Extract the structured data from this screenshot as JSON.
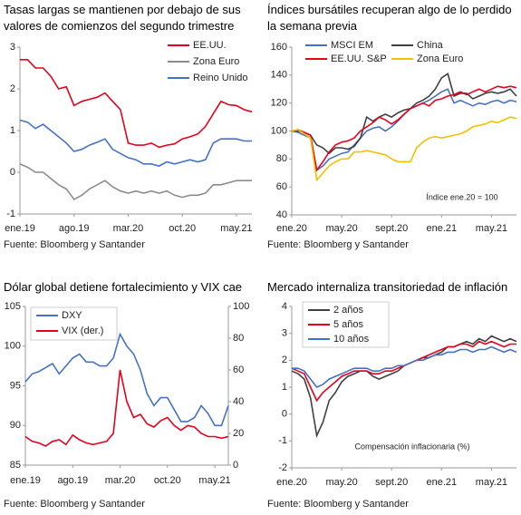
{
  "chart_data": [
    {
      "type": "line",
      "title": "Tasas largas se mantienen por debajo de sus valores de comienzos del segundo trimestre",
      "source": "Fuente: Bloomberg y Santander",
      "categories": [
        "ene.19",
        null,
        null,
        null,
        null,
        null,
        null,
        "ago.19",
        null,
        null,
        null,
        null,
        null,
        null,
        "mar.20",
        null,
        null,
        null,
        null,
        null,
        null,
        "oct.20",
        null,
        null,
        null,
        null,
        null,
        null,
        "may.21",
        null,
        null
      ],
      "series": [
        {
          "name": "EE.UU.",
          "color": "#e8001c",
          "values": [
            2.7,
            2.7,
            2.5,
            2.5,
            2.3,
            2.0,
            2.05,
            1.6,
            1.7,
            1.75,
            1.8,
            1.9,
            1.7,
            1.5,
            0.7,
            0.65,
            0.65,
            0.7,
            0.6,
            0.65,
            0.68,
            0.8,
            0.85,
            0.92,
            1.1,
            1.4,
            1.7,
            1.62,
            1.6,
            1.5,
            1.45
          ]
        },
        {
          "name": "Zona Euro",
          "color": "#8c8c8c",
          "values": [
            0.2,
            0.12,
            0.0,
            0.0,
            -0.15,
            -0.3,
            -0.4,
            -0.65,
            -0.55,
            -0.4,
            -0.3,
            -0.2,
            -0.35,
            -0.45,
            -0.5,
            -0.45,
            -0.5,
            -0.45,
            -0.5,
            -0.45,
            -0.55,
            -0.6,
            -0.55,
            -0.55,
            -0.5,
            -0.3,
            -0.3,
            -0.25,
            -0.2,
            -0.2,
            -0.2
          ]
        },
        {
          "name": "Reino Unido",
          "color": "#4472c4",
          "values": [
            1.25,
            1.2,
            1.05,
            1.15,
            1.0,
            0.85,
            0.7,
            0.5,
            0.55,
            0.65,
            0.72,
            0.8,
            0.55,
            0.45,
            0.35,
            0.3,
            0.2,
            0.2,
            0.15,
            0.25,
            0.2,
            0.25,
            0.3,
            0.25,
            0.3,
            0.7,
            0.8,
            0.8,
            0.8,
            0.75,
            0.75
          ]
        }
      ],
      "ylim": [
        -1,
        3
      ],
      "yticks": [
        -1,
        0,
        1,
        2,
        3
      ]
    },
    {
      "type": "line",
      "title": "Índices bursátiles recuperan algo de lo perdido la semana previa",
      "source": "Fuente: Bloomberg y Santander",
      "annotation": "Índice ene.20 = 100",
      "categories": [
        "ene.20",
        null,
        null,
        null,
        null,
        null,
        null,
        null,
        "may.20",
        null,
        null,
        null,
        null,
        null,
        null,
        null,
        "sept.20",
        null,
        null,
        null,
        null,
        null,
        null,
        null,
        "ene.21",
        null,
        null,
        null,
        null,
        null,
        null,
        null,
        "may.21",
        null,
        null,
        null,
        null
      ],
      "series": [
        {
          "name": "MSCI EM",
          "color": "#4472c4",
          "values": [
            100,
            99,
            97,
            95,
            72,
            75,
            80,
            82,
            84,
            85,
            90,
            95,
            100,
            102,
            103,
            100,
            103,
            107,
            112,
            116,
            118,
            120,
            122,
            125,
            128,
            130,
            120,
            122,
            120,
            118,
            120,
            119,
            121,
            122,
            120,
            122,
            121
          ]
        },
        {
          "name": "China",
          "color": "#404040",
          "values": [
            100,
            100,
            99,
            97,
            90,
            88,
            84,
            88,
            88,
            87,
            89,
            95,
            110,
            107,
            110,
            112,
            110,
            113,
            115,
            116,
            120,
            122,
            125,
            130,
            138,
            141,
            125,
            127,
            127,
            123,
            125,
            127,
            128,
            127,
            128,
            130,
            125
          ]
        },
        {
          "name": "EE.UU. S&P",
          "color": "#e8001c",
          "values": [
            100,
            101,
            99,
            97,
            72,
            78,
            85,
            90,
            92,
            93,
            95,
            100,
            103,
            106,
            110,
            108,
            105,
            108,
            112,
            116,
            118,
            120,
            118,
            122,
            123,
            125,
            126,
            128,
            126,
            128,
            130,
            128,
            130,
            132,
            131,
            132,
            131
          ]
        },
        {
          "name": "Zona Euro",
          "color": "#f5c000",
          "values": [
            100,
            101,
            98,
            95,
            65,
            70,
            75,
            78,
            80,
            80,
            85,
            85,
            86,
            85,
            84,
            83,
            80,
            78,
            78,
            78,
            88,
            92,
            95,
            96,
            95,
            96,
            97,
            98,
            100,
            103,
            104,
            105,
            107,
            106,
            108,
            110,
            109
          ]
        }
      ],
      "ylim": [
        40,
        160
      ],
      "yticks": [
        40,
        60,
        80,
        100,
        120,
        140,
        160
      ]
    },
    {
      "type": "line",
      "title": "Dólar global detiene fortalecimiento y VIX cae",
      "source": "Fuente: Bloomberg y Santander",
      "categories": [
        "ene.19",
        null,
        null,
        null,
        null,
        null,
        null,
        "ago.19",
        null,
        null,
        null,
        null,
        null,
        null,
        "mar.20",
        null,
        null,
        null,
        null,
        null,
        null,
        "oct.20",
        null,
        null,
        null,
        null,
        null,
        null,
        "may.21",
        null,
        null
      ],
      "series": [
        {
          "name": "DXY",
          "color": "#4472c4",
          "values": [
            95.5,
            96.5,
            96.8,
            97.3,
            97.8,
            96.5,
            97.5,
            98.5,
            99,
            98,
            98,
            97.5,
            97.5,
            98.5,
            101.5,
            100,
            99,
            97,
            94,
            92.5,
            93.5,
            93.5,
            92,
            90.5,
            90.5,
            91,
            92.5,
            91.5,
            90,
            90,
            92.5
          ]
        },
        {
          "name": "VIX (der.)",
          "color": "#e8001c",
          "axis": "y2",
          "values": [
            18,
            15,
            14,
            12,
            15,
            16,
            13,
            19,
            16,
            14,
            13,
            14,
            15,
            20,
            60,
            40,
            30,
            32,
            26,
            24,
            28,
            30,
            25,
            22,
            25,
            24,
            20,
            18,
            18,
            17,
            18
          ]
        }
      ],
      "ylim": [
        85,
        105
      ],
      "yticks": [
        85,
        90,
        95,
        100,
        105
      ],
      "y2lim": [
        0,
        100
      ],
      "y2ticks": [
        0,
        20,
        40,
        60,
        80,
        100
      ]
    },
    {
      "type": "line",
      "title": "Mercado internaliza transitoriedad de inflación",
      "source": "Fuente: Bloomberg y Santander",
      "annotation": "Compensación inflacionaria (%)",
      "categories": [
        "ene.20",
        null,
        null,
        null,
        null,
        null,
        null,
        null,
        "may.20",
        null,
        null,
        null,
        null,
        null,
        null,
        null,
        "sept.20",
        null,
        null,
        null,
        null,
        null,
        null,
        null,
        "ene.21",
        null,
        null,
        null,
        null,
        null,
        null,
        null,
        "may.21",
        null,
        null,
        null,
        null
      ],
      "series": [
        {
          "name": "2 años",
          "color": "#404040",
          "values": [
            1.6,
            1.5,
            1.3,
            0.6,
            -0.8,
            -0.3,
            0.5,
            0.8,
            1.2,
            1.4,
            1.5,
            1.6,
            1.6,
            1.4,
            1.3,
            1.4,
            1.5,
            1.6,
            1.8,
            1.9,
            2.0,
            2.1,
            2.1,
            2.2,
            2.3,
            2.5,
            2.5,
            2.6,
            2.7,
            2.6,
            2.8,
            2.7,
            2.9,
            2.8,
            2.7,
            2.8,
            2.7
          ]
        },
        {
          "name": "5 años",
          "color": "#e8001c",
          "values": [
            1.7,
            1.6,
            1.5,
            1.0,
            0.5,
            0.8,
            1.0,
            1.2,
            1.4,
            1.5,
            1.6,
            1.6,
            1.6,
            1.5,
            1.5,
            1.6,
            1.6,
            1.7,
            1.8,
            1.9,
            2.0,
            2.1,
            2.2,
            2.3,
            2.4,
            2.5,
            2.5,
            2.6,
            2.6,
            2.5,
            2.7,
            2.6,
            2.7,
            2.6,
            2.5,
            2.6,
            2.6
          ]
        },
        {
          "name": "10 años",
          "color": "#4472c4",
          "values": [
            1.7,
            1.7,
            1.6,
            1.3,
            1.0,
            1.1,
            1.3,
            1.4,
            1.5,
            1.6,
            1.7,
            1.7,
            1.7,
            1.6,
            1.6,
            1.7,
            1.7,
            1.8,
            1.8,
            1.9,
            2.0,
            2.0,
            2.1,
            2.2,
            2.2,
            2.3,
            2.3,
            2.4,
            2.4,
            2.3,
            2.4,
            2.4,
            2.5,
            2.4,
            2.3,
            2.4,
            2.3
          ]
        }
      ],
      "ylim": [
        -2,
        4
      ],
      "yticks": [
        -2,
        -1,
        0,
        1,
        2,
        3,
        4
      ]
    }
  ]
}
